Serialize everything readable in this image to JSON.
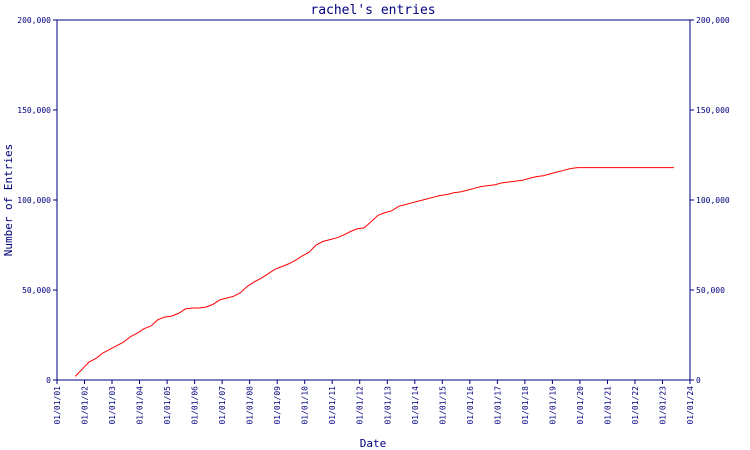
{
  "chart_data": {
    "type": "line",
    "title": "rachel's entries",
    "xlabel": "Date",
    "ylabel": "Number of Entries",
    "ylim": [
      0,
      200000
    ],
    "y_ticks": [
      0,
      50000,
      100000,
      150000,
      200000
    ],
    "y_tick_labels": [
      "0",
      "50,000",
      "100,000",
      "150,000",
      "200,000"
    ],
    "x_tick_labels": [
      "01/01/01",
      "01/01/02",
      "01/01/03",
      "01/01/04",
      "01/01/05",
      "01/01/06",
      "01/01/07",
      "01/01/08",
      "01/01/09",
      "01/01/10",
      "01/01/11",
      "01/01/12",
      "01/01/13",
      "01/01/14",
      "01/01/15",
      "01/01/16",
      "01/01/17",
      "01/01/18",
      "01/01/19",
      "01/01/20",
      "01/01/21",
      "01/01/22",
      "01/01/23",
      "01/01/24"
    ],
    "grid": false,
    "right_axis_mirror": true,
    "colors": {
      "axis": "#00007f",
      "text": "#00007f",
      "line": "#ff0000"
    },
    "series": [
      {
        "x": [
          "2001-09-01",
          "2001-12-01",
          "2002-03-01",
          "2002-06-01",
          "2002-09-01",
          "2002-12-01",
          "2003-03-01",
          "2003-06-01",
          "2003-09-01",
          "2003-12-01",
          "2004-03-01",
          "2004-06-01",
          "2004-09-01",
          "2004-12-01",
          "2005-03-01",
          "2005-06-01",
          "2005-09-01",
          "2005-12-01",
          "2006-03-01",
          "2006-06-01",
          "2006-09-01",
          "2006-12-01",
          "2007-03-01",
          "2007-06-01",
          "2007-09-01",
          "2007-12-01",
          "2008-03-01",
          "2008-06-01",
          "2008-09-01",
          "2008-12-01",
          "2009-03-01",
          "2009-06-01",
          "2009-09-01",
          "2009-12-01",
          "2010-03-01",
          "2010-06-01",
          "2010-09-01",
          "2010-12-01",
          "2011-03-01",
          "2011-06-01",
          "2011-09-01",
          "2011-12-01",
          "2012-03-01",
          "2012-06-01",
          "2012-09-01",
          "2012-12-01",
          "2013-03-01",
          "2013-06-01",
          "2013-09-01",
          "2013-12-01",
          "2014-03-01",
          "2014-06-01",
          "2014-09-01",
          "2014-12-01",
          "2015-03-01",
          "2015-06-01",
          "2015-09-01",
          "2015-12-01",
          "2016-03-01",
          "2016-06-01",
          "2016-09-01",
          "2016-12-01",
          "2017-03-01",
          "2017-06-01",
          "2017-09-01",
          "2017-12-01",
          "2018-03-01",
          "2018-06-01",
          "2018-09-01",
          "2018-12-01",
          "2019-03-01",
          "2019-06-01",
          "2019-09-01",
          "2019-12-01",
          "2020-03-01",
          "2020-06-01",
          "2020-09-01",
          "2020-12-01",
          "2021-03-01",
          "2021-06-01",
          "2021-09-01",
          "2021-12-01",
          "2022-03-01",
          "2022-06-01",
          "2022-09-01",
          "2022-12-01",
          "2023-03-01",
          "2023-06-01"
        ],
        "values": [
          2000,
          6000,
          10000,
          12000,
          15000,
          17000,
          19000,
          21000,
          24000,
          26000,
          28500,
          30000,
          33500,
          35000,
          35500,
          37000,
          39500,
          40000,
          40000,
          40500,
          42000,
          44500,
          45500,
          46500,
          48500,
          52000,
          54500,
          56500,
          59000,
          61500,
          63000,
          64500,
          66500,
          69000,
          71000,
          75000,
          77000,
          78000,
          79000,
          80500,
          82500,
          84000,
          84500,
          88000,
          91500,
          93000,
          94000,
          96500,
          97500,
          98500,
          99500,
          100500,
          101500,
          102500,
          103000,
          104000,
          104500,
          105500,
          106500,
          107500,
          108000,
          108500,
          109500,
          110000,
          110500,
          111000,
          112000,
          113000,
          113500,
          114500,
          115500,
          116500,
          117500,
          118000,
          118000,
          118000,
          118000,
          118000,
          118000,
          118000,
          118000,
          118000,
          118000,
          118000,
          118000,
          118000,
          118000,
          118000
        ]
      }
    ]
  }
}
